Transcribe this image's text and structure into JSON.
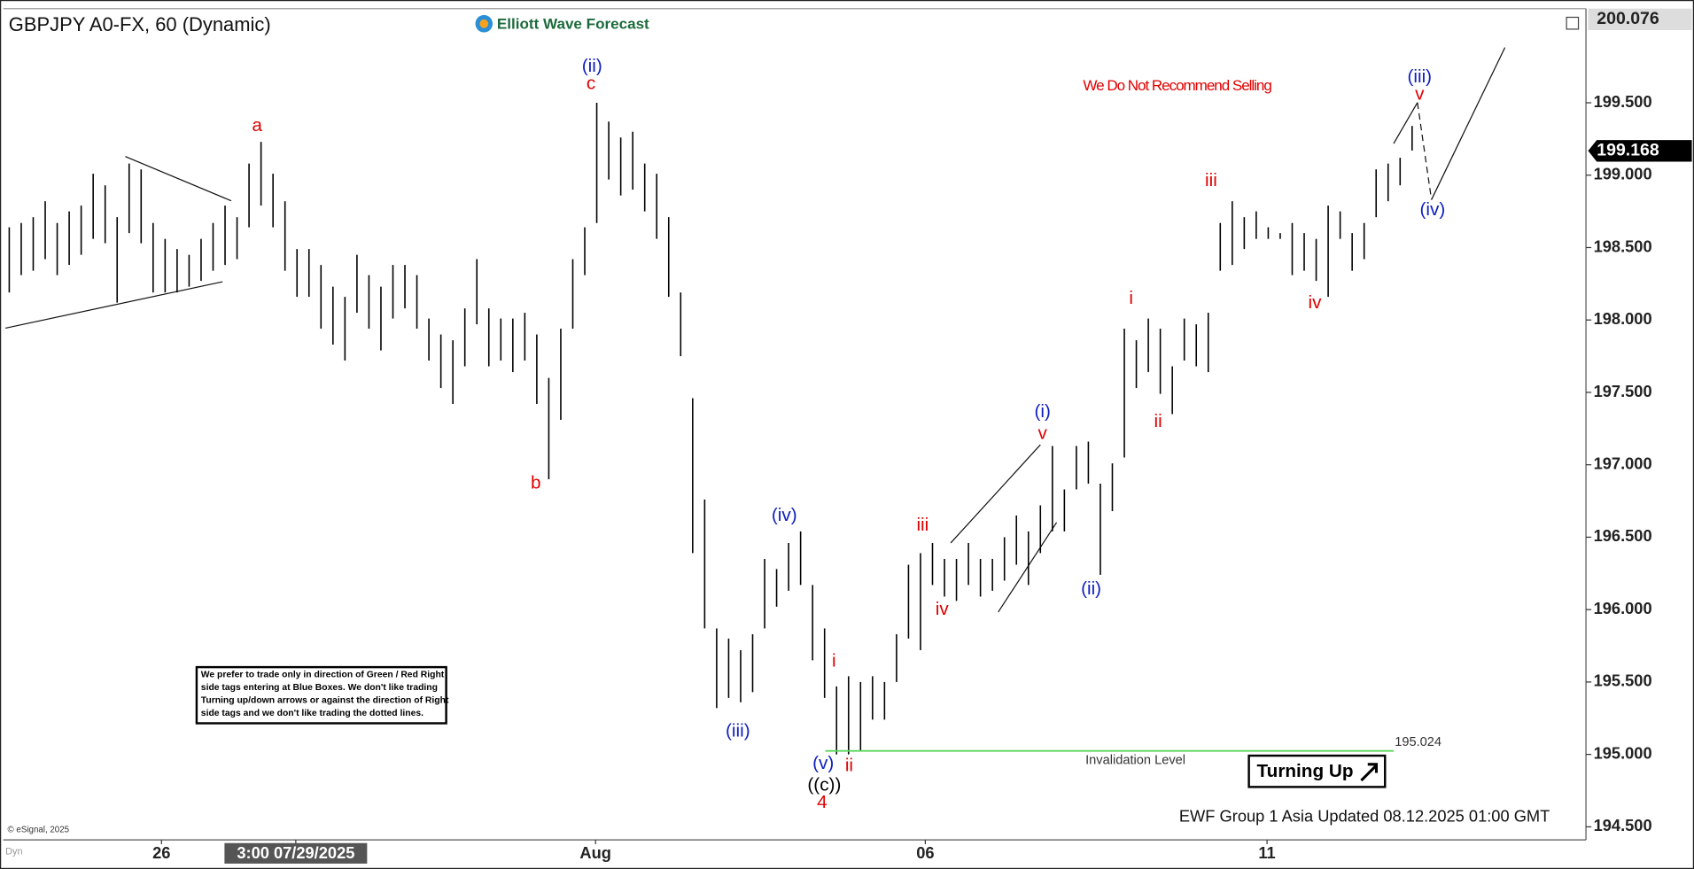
{
  "chart_data": {
    "type": "ohlc",
    "title": "GBPJPY A0-FX, 60 (Dynamic)",
    "logo": "Elliott Wave Forecast",
    "high": [
      198.64,
      198.67,
      198.71,
      198.82,
      198.67,
      198.75,
      198.79,
      199.01,
      198.93,
      198.71,
      199.08,
      199.04,
      198.67,
      198.56,
      198.49,
      198.45,
      198.56,
      198.67,
      198.79,
      198.71,
      199.08,
      199.23,
      199.01,
      198.82,
      198.49,
      198.49,
      198.38,
      198.23,
      198.16,
      198.45,
      198.31,
      198.23,
      198.38,
      198.38,
      198.31,
      198.01,
      197.9,
      197.86,
      198.08,
      198.42,
      198.08,
      198.01,
      198.01,
      198.05,
      197.9,
      197.6,
      197.94,
      198.42,
      198.64,
      199.5,
      199.37,
      199.26,
      199.3,
      199.08,
      199.01,
      198.71,
      198.19,
      197.46,
      196.76,
      195.87,
      195.8,
      195.72,
      195.83,
      196.35,
      196.28,
      196.46,
      196.54,
      196.17,
      195.87,
      195.47,
      195.54,
      195.5,
      195.54,
      195.5,
      195.83,
      196.31,
      196.39,
      196.46,
      196.35,
      196.35,
      196.46,
      196.35,
      196.35,
      196.5,
      196.65,
      196.54,
      196.72,
      197.13,
      196.83,
      197.13,
      197.16,
      196.87,
      197.01,
      197.94,
      197.86,
      198.01,
      197.94,
      197.68,
      198.01,
      197.97,
      198.05,
      198.67,
      198.82,
      198.71,
      198.75,
      198.64,
      198.6,
      198.67,
      198.6,
      198.56,
      198.79,
      198.75,
      198.6,
      198.67,
      199.04,
      199.08,
      199.12,
      199.34
    ],
    "low": [
      198.19,
      198.31,
      198.34,
      198.42,
      198.31,
      198.38,
      198.45,
      198.56,
      198.53,
      198.12,
      198.6,
      198.53,
      198.19,
      198.19,
      198.19,
      198.23,
      198.27,
      198.34,
      198.38,
      198.42,
      198.64,
      198.79,
      198.64,
      198.34,
      198.16,
      198.16,
      197.94,
      197.83,
      197.72,
      198.05,
      197.94,
      197.79,
      198.01,
      198.08,
      197.94,
      197.72,
      197.53,
      197.42,
      197.68,
      197.97,
      197.68,
      197.72,
      197.64,
      197.72,
      197.42,
      196.9,
      197.31,
      197.94,
      198.31,
      198.67,
      198.97,
      198.86,
      198.9,
      198.75,
      198.56,
      198.16,
      197.75,
      196.39,
      195.87,
      195.32,
      195.39,
      195.36,
      195.43,
      195.87,
      196.02,
      196.13,
      196.17,
      195.65,
      195.39,
      195.0,
      195.0,
      195.02,
      195.24,
      195.24,
      195.5,
      195.8,
      195.72,
      196.17,
      196.09,
      196.06,
      196.17,
      196.09,
      196.13,
      196.2,
      196.31,
      196.17,
      196.39,
      196.54,
      196.54,
      196.83,
      196.87,
      196.24,
      196.68,
      197.05,
      197.53,
      197.64,
      197.49,
      197.35,
      197.72,
      197.68,
      197.64,
      198.34,
      198.38,
      198.49,
      198.56,
      198.56,
      198.56,
      198.31,
      198.34,
      198.27,
      198.16,
      198.56,
      198.34,
      198.42,
      198.71,
      198.82,
      198.93,
      199.17
    ],
    "color": "#000000",
    "ylim": [
      194.41,
      200.15
    ],
    "yticks": [
      {
        "value": 194.5,
        "label": "194.500"
      },
      {
        "value": 195,
        "label": "195.000"
      },
      {
        "value": 195.5,
        "label": "195.500"
      },
      {
        "value": 196,
        "label": "196.000"
      },
      {
        "value": 196.5,
        "label": "196.500"
      },
      {
        "value": 197,
        "label": "197.000"
      },
      {
        "value": 197.5,
        "label": "197.500"
      },
      {
        "value": 198,
        "label": "198.000"
      },
      {
        "value": 198.5,
        "label": "198.500"
      },
      {
        "value": 199,
        "label": "199.000"
      },
      {
        "value": 199.5,
        "label": "199.500"
      }
    ],
    "xlim": [
      -0.5,
      131.5
    ],
    "xticks": [
      {
        "value": 12.7,
        "label": "26"
      },
      {
        "value": 23.9,
        "label": "3:00 07/29/2025"
      },
      {
        "value": 48.9,
        "label": "Aug"
      },
      {
        "value": 76.4,
        "label": "06"
      },
      {
        "value": 104.9,
        "label": "11"
      }
    ],
    "top_price": {
      "value": 200.076,
      "label": "200.076"
    },
    "last_price": {
      "value": 199.168,
      "label": "199.168"
    },
    "invalidation": {
      "value": 195.024,
      "label": "195.024",
      "text": "Invalidation Level",
      "color": "#5cd65c"
    },
    "waves": [
      {
        "text": "a",
        "color": "#e00000"
      },
      {
        "text": "(ii)",
        "color": "#1020c0"
      },
      {
        "text": "c",
        "color": "#e00000"
      },
      {
        "text": "b",
        "color": "#e00000"
      },
      {
        "text": "(iii)",
        "color": "#1020c0"
      },
      {
        "text": "(iv)",
        "color": "#1020c0"
      },
      {
        "text": "(v)",
        "color": "#1020c0"
      },
      {
        "text": "((c))",
        "color": "#000000"
      },
      {
        "text": "4",
        "color": "#e00000"
      },
      {
        "text": "i",
        "color": "#e00000"
      },
      {
        "text": "ii",
        "color": "#e00000"
      },
      {
        "text": "iii",
        "color": "#e00000"
      },
      {
        "text": "iv",
        "color": "#e00000"
      },
      {
        "text": "(i)",
        "color": "#1020c0"
      },
      {
        "text": "v",
        "color": "#e00000"
      },
      {
        "text": "(ii)",
        "color": "#1020c0"
      },
      {
        "text": "i",
        "color": "#e00000"
      },
      {
        "text": "ii",
        "color": "#e00000"
      },
      {
        "text": "iii",
        "color": "#e00000"
      },
      {
        "text": "iv",
        "color": "#e00000"
      },
      {
        "text": "(iii)",
        "color": "#1020c0"
      },
      {
        "text": "v",
        "color": "#e00000"
      },
      {
        "text": "(iv)",
        "color": "#1020c0"
      }
    ],
    "recommendation": "We Do Not Recommend Selling",
    "signal": "Turning Up",
    "notice": [
      "We prefer to trade only in direction of Green / Red Right",
      "side tags entering at Blue Boxes. We don't like trading",
      "Turning up/down arrows or against the direction of Right",
      "side tags and we don't like trading the dotted lines."
    ],
    "footer": "EWF Group 1 Asia Updated 08.12.2025 01:00 GMT",
    "copyright": "© eSignal, 2025",
    "corner": "Dyn"
  }
}
